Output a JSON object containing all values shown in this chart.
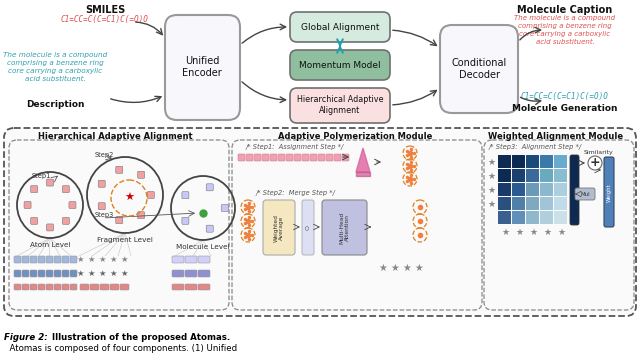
{
  "bg_color": "#ffffff",
  "top": {
    "smiles_label": "SMILES",
    "smiles_text": "C1=CC=C(C=C1)C(=O)O",
    "smiles_color": "#e05050",
    "desc_text": "The molecule is a compound\ncomprising a benzene ring\ncore carrying a carboxylic\nacid substituent.",
    "desc_color": "#30a0b0",
    "desc_label": "Description",
    "encoder_label": "Unified\nEncoder",
    "global_label": "Global Alignment",
    "momentum_label": "Momentum Model",
    "hier_label": "Hierarchical Adaptive\nAlignment",
    "decoder_label": "Conditional\nDecoder",
    "mol_cap_label": "Molecule Caption",
    "mol_cap_text": "The molecule is a compound\ncomprising a benzene ring\ncore carrying a carboxylic\nacid substituent.",
    "mol_cap_color": "#e05050",
    "mol_gen_label": "Molecule Generation",
    "mol_gen_text": "C1=CC=C(C=C1)C(=O)O",
    "mol_gen_color": "#30a0b0"
  },
  "bottom": {
    "hier_title": "Hierarchical Adaptive Alignment",
    "poly_title": "Adaptive Polymerization Module",
    "weight_title": "Weighted Alignment Module",
    "step1_label": "/* Step1:  Assignment Step */",
    "step2_label": "/* Step2:  Merge Step */",
    "step3_label": "/* Step3:  Alignment Step */",
    "atom_label": "Atom Level",
    "frag_label": "Fragment Level",
    "mol_label": "Molecule Level"
  },
  "caption": "Figure 2: Illustration of the proposed Atomas.  Atomas is composed of four components. (1) Unified"
}
